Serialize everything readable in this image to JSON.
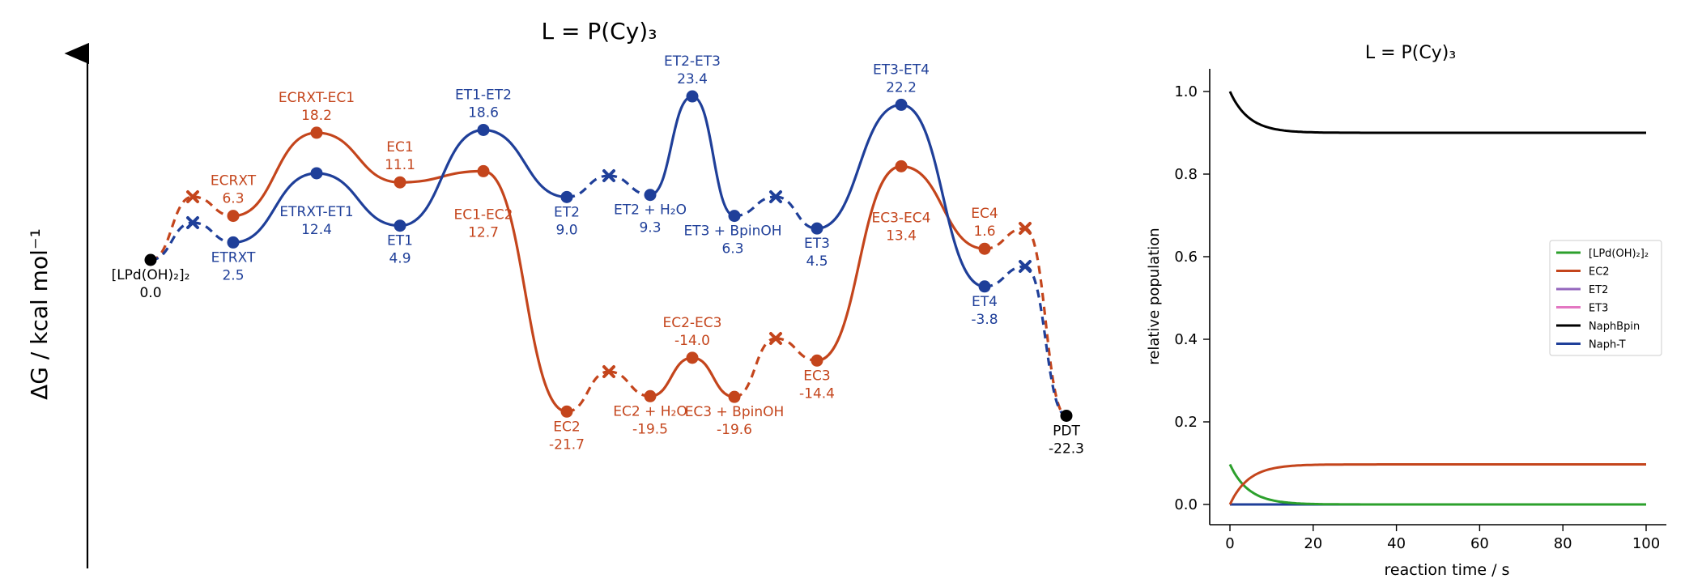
{
  "chart_data": [
    {
      "type": "line",
      "title": "L = P(Cy)₃",
      "ylabel": "ΔG / kcal mol⁻¹",
      "xlabel": "",
      "colors": {
        "EC": "#c4451c",
        "ET": "#1f3f99",
        "common": "#000000"
      },
      "states": [
        {
          "name": "[LPd(OH)₂]₂",
          "value": "0.0",
          "series": "common"
        },
        {
          "name": "ECRXT",
          "value": "6.3",
          "series": "EC"
        },
        {
          "name": "ETRXT",
          "value": "2.5",
          "series": "ET"
        },
        {
          "name": "ECRXT-EC1",
          "value": "18.2",
          "series": "EC"
        },
        {
          "name": "ETRXT-ET1",
          "value": "12.4",
          "series": "ET"
        },
        {
          "name": "EC1",
          "value": "11.1",
          "series": "EC"
        },
        {
          "name": "ET1",
          "value": "4.9",
          "series": "ET"
        },
        {
          "name": "EC1-EC2",
          "value": "12.7",
          "series": "EC"
        },
        {
          "name": "ET1-ET2",
          "value": "18.6",
          "series": "ET"
        },
        {
          "name": "EC2",
          "value": "-21.7",
          "series": "EC"
        },
        {
          "name": "ET2",
          "value": "9.0",
          "series": "ET"
        },
        {
          "name": "EC2 + H₂O",
          "value": "-19.5",
          "series": "EC"
        },
        {
          "name": "ET2 + H₂O",
          "value": "9.3",
          "series": "ET"
        },
        {
          "name": "EC2-EC3",
          "value": "-14.0",
          "series": "EC"
        },
        {
          "name": "ET2-ET3",
          "value": "23.4",
          "series": "ET"
        },
        {
          "name": "EC3 + BpinOH",
          "value": "-19.6",
          "series": "EC"
        },
        {
          "name": "ET3 + BpinOH",
          "value": "6.3",
          "series": "ET"
        },
        {
          "name": "EC3",
          "value": "-14.4",
          "series": "EC"
        },
        {
          "name": "ET3",
          "value": "4.5",
          "series": "ET"
        },
        {
          "name": "EC3-EC4",
          "value": "13.4",
          "series": "EC"
        },
        {
          "name": "ET3-ET4",
          "value": "22.2",
          "series": "ET"
        },
        {
          "name": "EC4",
          "value": "1.6",
          "series": "EC"
        },
        {
          "name": "ET4",
          "value": "-3.8",
          "series": "ET"
        },
        {
          "name": "PDT",
          "value": "-22.3",
          "series": "common"
        }
      ]
    },
    {
      "type": "line",
      "title": "L = P(Cy)₃",
      "xlabel": "reaction time / s",
      "ylabel": "relative population",
      "xlim": [
        0,
        100
      ],
      "ylim": [
        -0.05,
        1.05
      ],
      "xticks": [
        "0",
        "20",
        "40",
        "60",
        "80",
        "100"
      ],
      "yticks": [
        "0.0",
        "0.2",
        "0.4",
        "0.6",
        "0.8",
        "1.0"
      ],
      "legend_position": "center-right",
      "series": [
        {
          "name": "[LPd(OH)₂]₂",
          "color": "#2ca02c"
        },
        {
          "name": "EC2",
          "color": "#c4451c"
        },
        {
          "name": "ET2",
          "color": "#9467bd"
        },
        {
          "name": "ET3",
          "color": "#e377c2"
        },
        {
          "name": "NaphBpin",
          "color": "#000000"
        },
        {
          "name": "Naph-T",
          "color": "#1f3f99"
        }
      ]
    }
  ]
}
